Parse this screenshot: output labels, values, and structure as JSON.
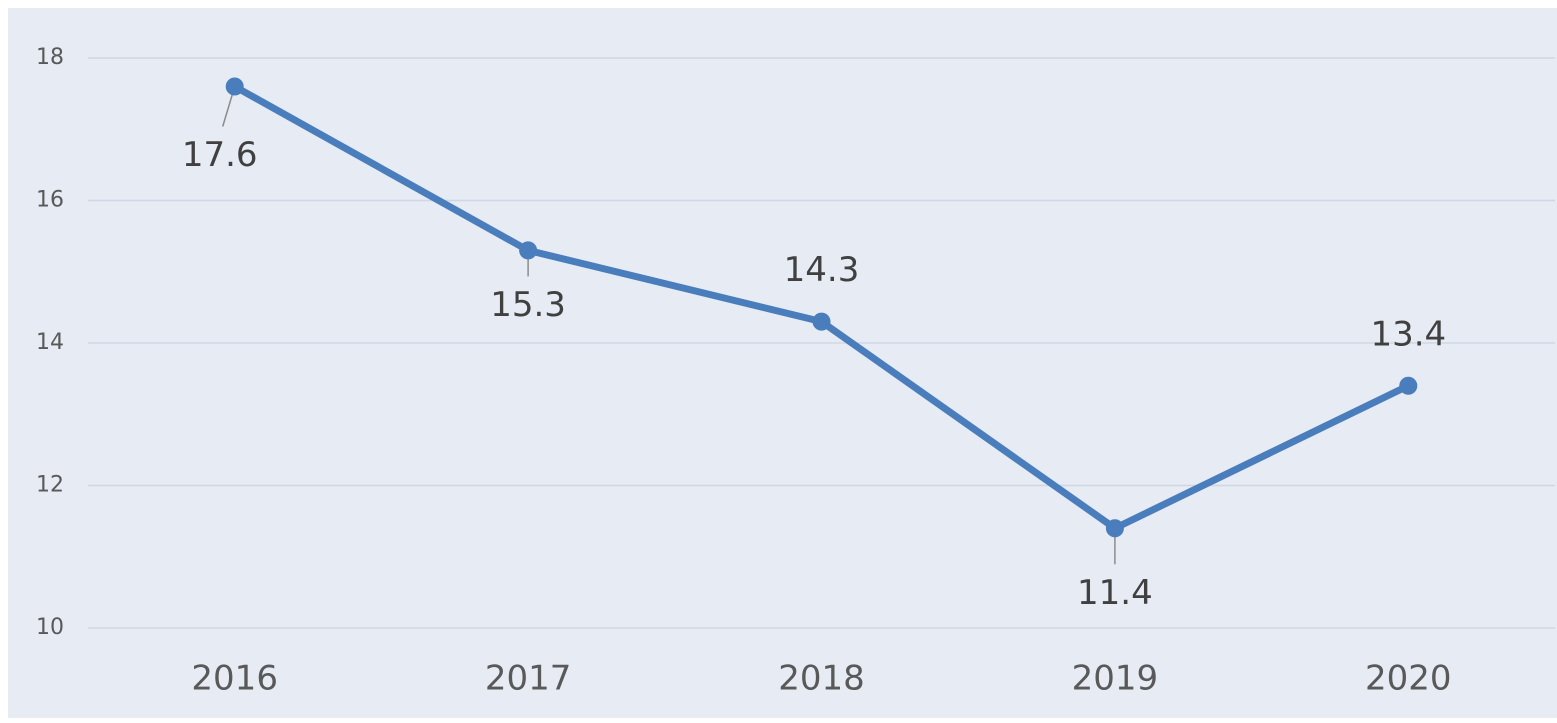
{
  "chart_data": {
    "type": "line",
    "categories": [
      "2016",
      "2017",
      "2018",
      "2019",
      "2020"
    ],
    "series": [
      {
        "color": "#4a7dbb",
        "values": [
          17.6,
          15.3,
          14.3,
          11.4,
          13.4
        ]
      }
    ],
    "ylim": [
      10,
      18
    ],
    "yticks": [
      10,
      12,
      14,
      16,
      18
    ],
    "grid": true
  }
}
